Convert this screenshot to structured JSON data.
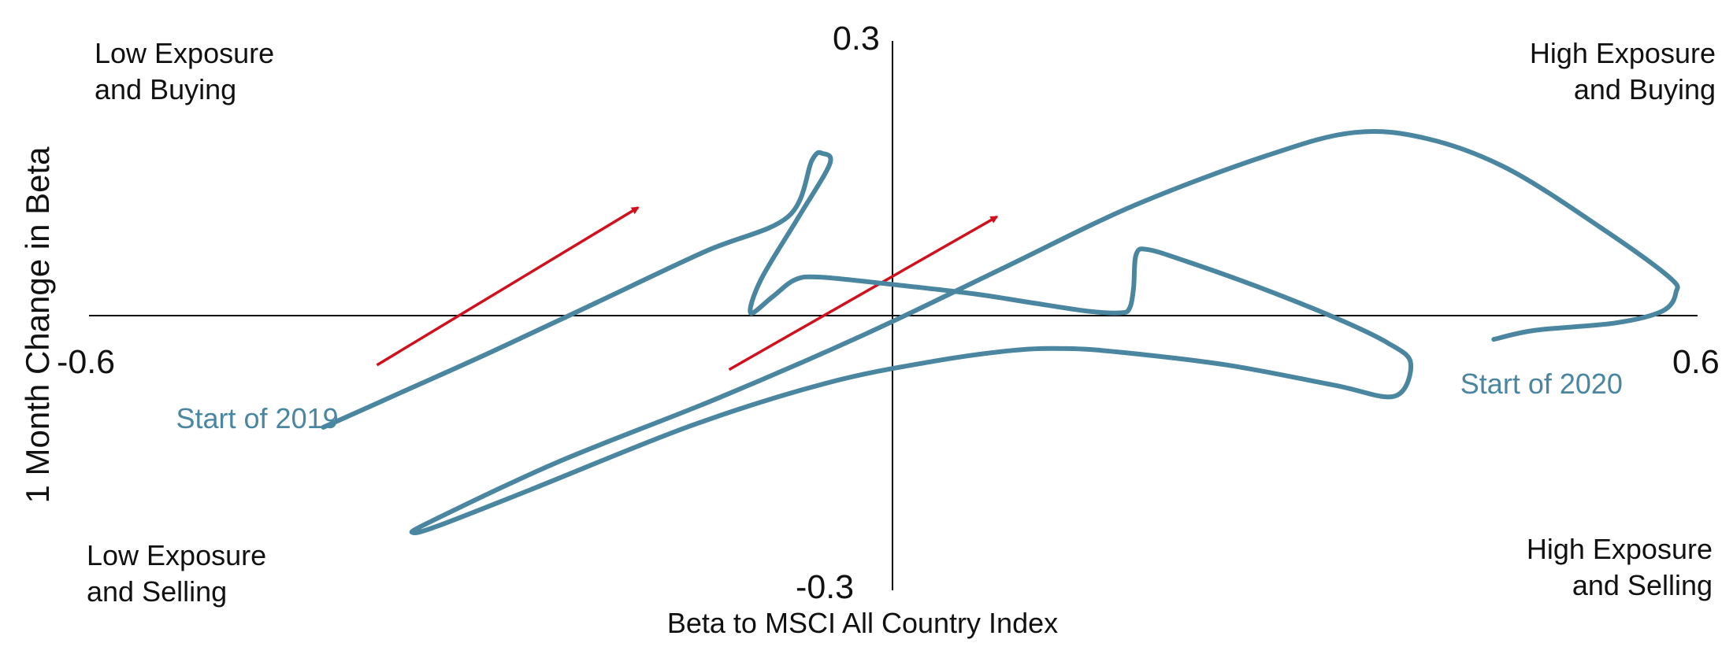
{
  "chart_data": {
    "type": "line",
    "title": "",
    "xlabel": "Beta to MSCI All Country Index",
    "ylabel": "1 Month Change in Beta",
    "xlim": [
      -0.6,
      0.6
    ],
    "ylim": [
      -0.3,
      0.3
    ],
    "x_ticks": [
      {
        "value": -0.6,
        "label": "-0.6"
      },
      {
        "value": 0.6,
        "label": "0.6"
      }
    ],
    "y_ticks": [
      {
        "value": 0.3,
        "label": "0.3"
      },
      {
        "value": -0.3,
        "label": "-0.3"
      }
    ],
    "grid": false,
    "legend": "none",
    "colors": {
      "line": "#4a86a0",
      "arrow": "#d0101c",
      "axis": "#000000",
      "text": "#111111"
    },
    "quadrant_labels": [
      {
        "position": "top-left",
        "lines": [
          "Low Exposure",
          "and Buying"
        ]
      },
      {
        "position": "top-right",
        "lines": [
          "High Exposure",
          "and Buying"
        ]
      },
      {
        "position": "bottom-left",
        "lines": [
          "Low Exposure",
          "and Selling"
        ]
      },
      {
        "position": "bottom-right",
        "lines": [
          "High Exposure",
          "and Selling"
        ]
      }
    ],
    "annotations": [
      {
        "text": "Start of 2019",
        "x": -0.535,
        "y": -0.123
      },
      {
        "text": "Start of 2020",
        "x": 0.424,
        "y": -0.085
      }
    ],
    "trend_arrows": [
      {
        "x1": -0.385,
        "y1": -0.054,
        "x2": -0.19,
        "y2": 0.118
      },
      {
        "x1": -0.122,
        "y1": -0.059,
        "x2": 0.078,
        "y2": 0.108
      }
    ],
    "series": [
      {
        "values": [
          {
            "x": -0.425,
            "y": -0.122
          },
          {
            "x": -0.37,
            "y": -0.086
          },
          {
            "x": -0.3,
            "y": -0.04
          },
          {
            "x": -0.22,
            "y": 0.015
          },
          {
            "x": -0.14,
            "y": 0.07
          },
          {
            "x": -0.078,
            "y": 0.108
          },
          {
            "x": -0.06,
            "y": 0.17
          },
          {
            "x": -0.052,
            "y": 0.177
          },
          {
            "x": -0.047,
            "y": 0.165
          },
          {
            "x": -0.07,
            "y": 0.108
          },
          {
            "x": -0.098,
            "y": 0.04
          },
          {
            "x": -0.106,
            "y": 0.003
          },
          {
            "x": -0.09,
            "y": 0.02
          },
          {
            "x": -0.073,
            "y": 0.039
          },
          {
            "x": -0.054,
            "y": 0.042
          },
          {
            "x": 0.0,
            "y": 0.034
          },
          {
            "x": 0.06,
            "y": 0.024
          },
          {
            "x": 0.1,
            "y": 0.015
          },
          {
            "x": 0.145,
            "y": 0.005
          },
          {
            "x": 0.17,
            "y": 0.003
          },
          {
            "x": 0.177,
            "y": 0.008
          },
          {
            "x": 0.18,
            "y": 0.03
          },
          {
            "x": 0.182,
            "y": 0.067
          },
          {
            "x": 0.191,
            "y": 0.072
          },
          {
            "x": 0.22,
            "y": 0.059
          },
          {
            "x": 0.27,
            "y": 0.033
          },
          {
            "x": 0.33,
            "y": -0.002
          },
          {
            "x": 0.37,
            "y": -0.03
          },
          {
            "x": 0.387,
            "y": -0.052
          },
          {
            "x": 0.375,
            "y": -0.088
          },
          {
            "x": 0.33,
            "y": -0.076
          },
          {
            "x": 0.25,
            "y": -0.054
          },
          {
            "x": 0.17,
            "y": -0.04
          },
          {
            "x": 0.13,
            "y": -0.036
          },
          {
            "x": 0.09,
            "y": -0.038
          },
          {
            "x": 0.03,
            "y": -0.05
          },
          {
            "x": -0.05,
            "y": -0.074
          },
          {
            "x": -0.15,
            "y": -0.12
          },
          {
            "x": -0.27,
            "y": -0.19
          },
          {
            "x": -0.34,
            "y": -0.23
          },
          {
            "x": -0.358,
            "y": -0.237
          },
          {
            "x": -0.345,
            "y": -0.225
          },
          {
            "x": -0.25,
            "y": -0.16
          },
          {
            "x": -0.13,
            "y": -0.09
          },
          {
            "x": -0.02,
            "y": -0.02
          },
          {
            "x": 0.08,
            "y": 0.05
          },
          {
            "x": 0.18,
            "y": 0.12
          },
          {
            "x": 0.28,
            "y": 0.175
          },
          {
            "x": 0.345,
            "y": 0.2
          },
          {
            "x": 0.4,
            "y": 0.193
          },
          {
            "x": 0.46,
            "y": 0.16
          },
          {
            "x": 0.53,
            "y": 0.095
          },
          {
            "x": 0.58,
            "y": 0.042
          },
          {
            "x": 0.585,
            "y": 0.025
          },
          {
            "x": 0.575,
            "y": 0.005
          },
          {
            "x": 0.54,
            "y": -0.008
          },
          {
            "x": 0.48,
            "y": -0.016
          },
          {
            "x": 0.449,
            "y": -0.026
          }
        ]
      }
    ]
  }
}
